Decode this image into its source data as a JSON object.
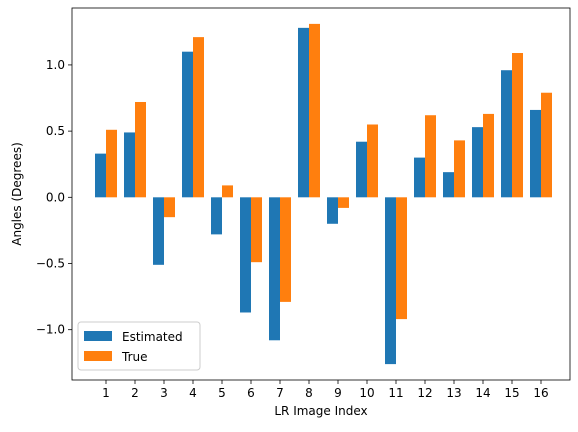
{
  "chart_data": {
    "type": "bar",
    "categories": [
      "1",
      "2",
      "3",
      "4",
      "5",
      "6",
      "7",
      "8",
      "9",
      "10",
      "11",
      "12",
      "13",
      "14",
      "15",
      "16"
    ],
    "series": [
      {
        "name": "Estimated",
        "color": "#1f77b4",
        "values": [
          0.33,
          0.49,
          -0.51,
          1.1,
          -0.28,
          -0.87,
          -1.08,
          1.28,
          -0.2,
          0.42,
          -1.26,
          0.3,
          0.19,
          0.53,
          0.96,
          0.66
        ]
      },
      {
        "name": "True",
        "color": "#ff7f0e",
        "values": [
          0.51,
          0.72,
          -0.15,
          1.21,
          0.09,
          -0.49,
          -0.79,
          1.31,
          -0.08,
          0.55,
          -0.92,
          0.62,
          0.43,
          0.63,
          1.09,
          0.79
        ]
      }
    ],
    "xlabel": "LR Image Index",
    "ylabel": "Angles (Degrees)",
    "ylim": [
      -1.38,
      1.43
    ],
    "yticks": [
      -1.0,
      -0.5,
      0.0,
      0.5,
      1.0
    ],
    "ytick_labels": [
      "−1.0",
      "−0.5",
      "0.0",
      "0.5",
      "1.0"
    ],
    "grid": false,
    "legend_position": "lower-left"
  }
}
